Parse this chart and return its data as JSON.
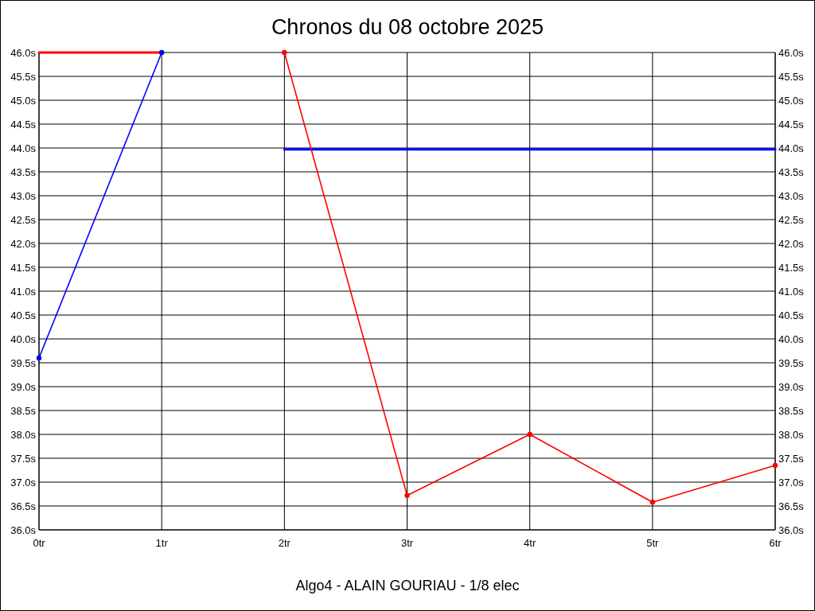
{
  "chart_data": {
    "type": "line",
    "title": "Chronos du 08 octobre 2025",
    "xlabel": "Algo4 - ALAIN GOURIAU - 1/8 elec",
    "xlim": [
      0,
      6
    ],
    "xticks": [
      {
        "value": 0,
        "label": "0tr"
      },
      {
        "value": 1,
        "label": "1tr"
      },
      {
        "value": 2,
        "label": "2tr"
      },
      {
        "value": 3,
        "label": "3tr"
      },
      {
        "value": 4,
        "label": "4tr"
      },
      {
        "value": 5,
        "label": "5tr"
      },
      {
        "value": 6,
        "label": "6tr"
      }
    ],
    "ylim": [
      36,
      46
    ],
    "yticks": [
      {
        "value": 36,
        "label": "36.0s"
      },
      {
        "value": 36.5,
        "label": "36.5s"
      },
      {
        "value": 37,
        "label": "37.0s"
      },
      {
        "value": 37.5,
        "label": "37.5s"
      },
      {
        "value": 38,
        "label": "38.0s"
      },
      {
        "value": 38.5,
        "label": "38.5s"
      },
      {
        "value": 39,
        "label": "39.0s"
      },
      {
        "value": 39.5,
        "label": "39.5s"
      },
      {
        "value": 40,
        "label": "40.0s"
      },
      {
        "value": 40.5,
        "label": "40.5s"
      },
      {
        "value": 41,
        "label": "41.0s"
      },
      {
        "value": 41.5,
        "label": "41.5s"
      },
      {
        "value": 42,
        "label": "42.0s"
      },
      {
        "value": 42.5,
        "label": "42.5s"
      },
      {
        "value": 43,
        "label": "43.0s"
      },
      {
        "value": 43.5,
        "label": "43.5s"
      },
      {
        "value": 44,
        "label": "44.0s"
      },
      {
        "value": 44.5,
        "label": "44.5s"
      },
      {
        "value": 45,
        "label": "45.0s"
      },
      {
        "value": 45.5,
        "label": "45.5s"
      },
      {
        "value": 46,
        "label": "46.0s"
      }
    ],
    "y2lim": [
      36,
      46
    ],
    "y2ticks": [
      {
        "value": 36,
        "label": "36.0s"
      },
      {
        "value": 36.5,
        "label": "36.5s"
      },
      {
        "value": 37,
        "label": "37.0s"
      },
      {
        "value": 37.5,
        "label": "37.5s"
      },
      {
        "value": 38,
        "label": "38.0s"
      },
      {
        "value": 38.5,
        "label": "38.5s"
      },
      {
        "value": 39,
        "label": "39.0s"
      },
      {
        "value": 39.5,
        "label": "39.5s"
      },
      {
        "value": 40,
        "label": "40.0s"
      },
      {
        "value": 40.5,
        "label": "40.5s"
      },
      {
        "value": 41,
        "label": "41.0s"
      },
      {
        "value": 41.5,
        "label": "41.5s"
      },
      {
        "value": 42,
        "label": "42.0s"
      },
      {
        "value": 42.5,
        "label": "42.5s"
      },
      {
        "value": 43,
        "label": "43.0s"
      },
      {
        "value": 43.5,
        "label": "43.5s"
      },
      {
        "value": 44,
        "label": "44.0s"
      },
      {
        "value": 44.5,
        "label": "44.5s"
      },
      {
        "value": 45,
        "label": "45.0s"
      },
      {
        "value": 45.5,
        "label": "45.5s"
      },
      {
        "value": 46,
        "label": "46.0s"
      }
    ],
    "grid": true,
    "series": [
      {
        "color": "#ff0000",
        "x": [
          0,
          1
        ],
        "values": [
          46.0,
          46.0
        ],
        "marker": "none"
      },
      {
        "color": "#0000ff",
        "x": [
          0,
          1
        ],
        "values": [
          39.6,
          46.0
        ],
        "marker": "circle"
      },
      {
        "color": "#0000ff",
        "x": [
          2,
          6
        ],
        "values": [
          43.97,
          43.97
        ],
        "marker": "none"
      },
      {
        "color": "#ff0000",
        "x": [
          2,
          3,
          4,
          5,
          6
        ],
        "values": [
          46.0,
          36.72,
          38.0,
          36.58,
          37.35
        ],
        "marker": "circle"
      }
    ]
  }
}
